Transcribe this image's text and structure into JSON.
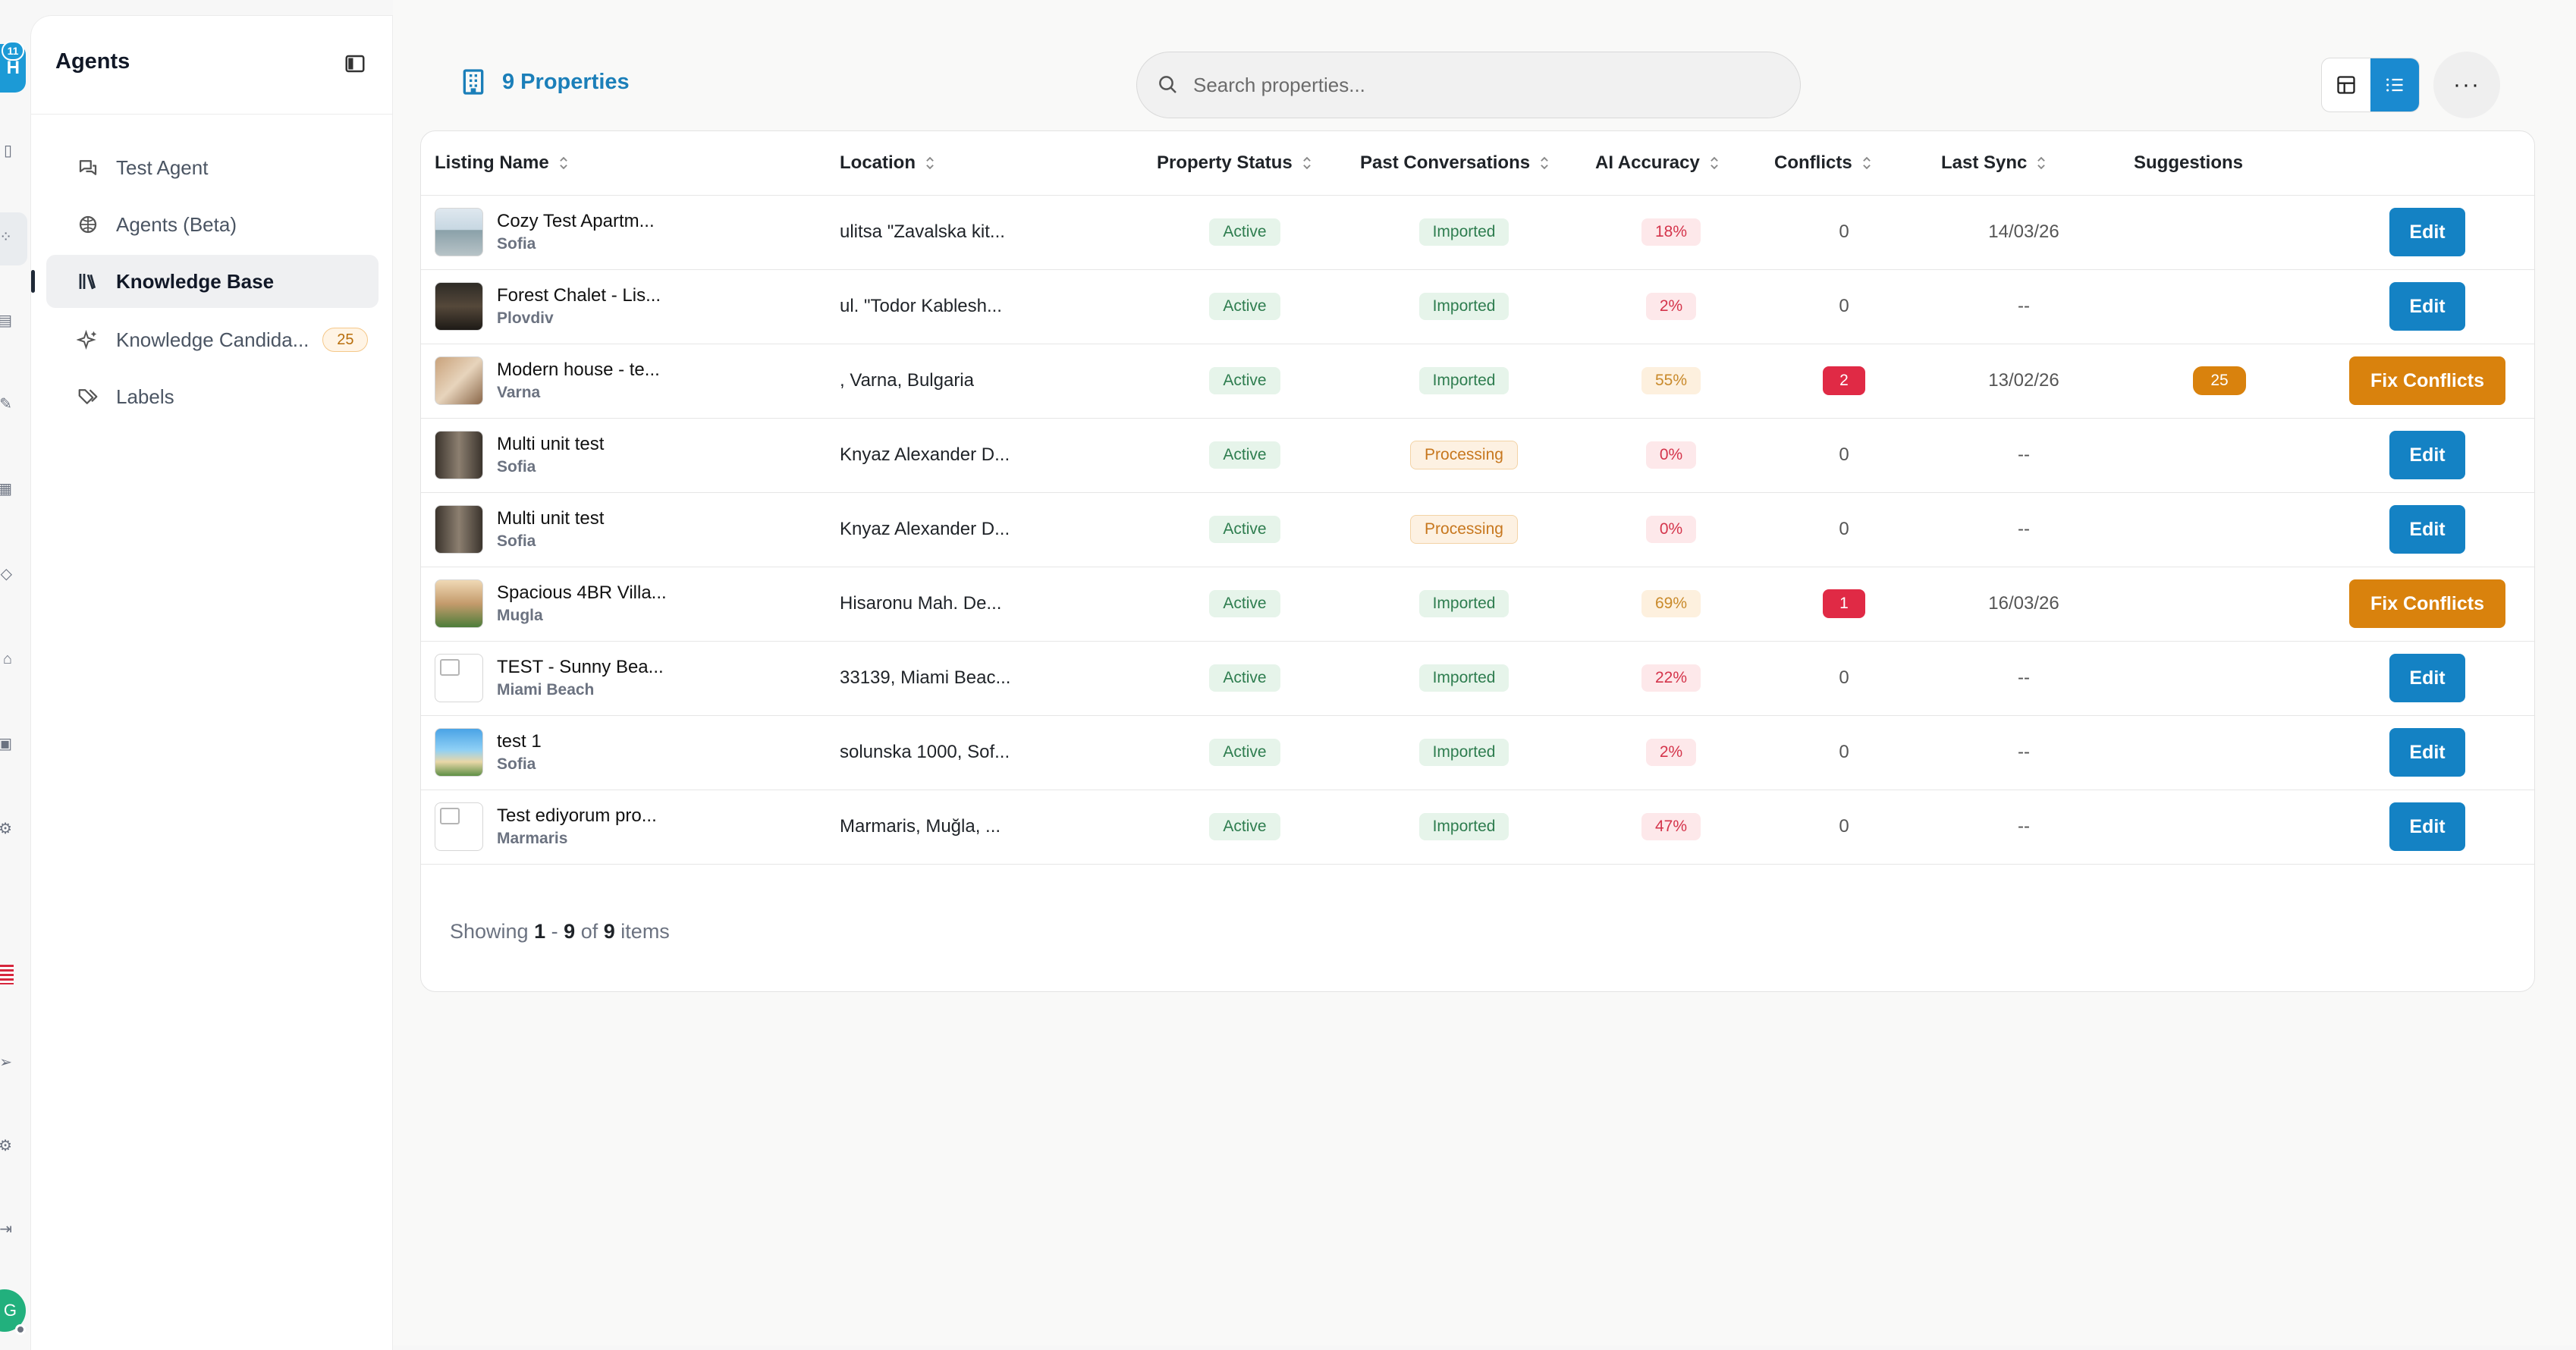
{
  "rail": {
    "logo_letter": "H",
    "notif_count": "11",
    "avatar_letter": "G"
  },
  "sidebar": {
    "title": "Agents",
    "items": [
      {
        "label": "Test Agent",
        "icon": "chat-icon"
      },
      {
        "label": "Agents (Beta)",
        "icon": "brain-icon"
      },
      {
        "label": "Knowledge Base",
        "icon": "library-icon",
        "active": true
      },
      {
        "label": "Knowledge Candida...",
        "icon": "sparkles-icon",
        "badge": "25"
      },
      {
        "label": "Labels",
        "icon": "tags-icon"
      }
    ]
  },
  "header": {
    "properties_label": "9 Properties",
    "search_placeholder": "Search properties...",
    "more_label": "···"
  },
  "table": {
    "columns": [
      "Listing Name",
      "Location",
      "Property Status",
      "Past Conversations",
      "AI Accuracy",
      "Conflicts",
      "Last Sync",
      "Suggestions"
    ],
    "rows": [
      {
        "name": "Cozy Test Apartm...",
        "city": "Sofia",
        "location": "ulitsa \"Zavalska kit...",
        "status": "Active",
        "conv": "Imported",
        "accuracy": "18%",
        "conflicts": "0",
        "sync": "14/03/26",
        "suggestions": "",
        "action": "Edit"
      },
      {
        "name": "Forest Chalet - Lis...",
        "city": "Plovdiv",
        "location": "ul. \"Todor Kablesh...",
        "status": "Active",
        "conv": "Imported",
        "accuracy": "2%",
        "conflicts": "0",
        "sync": "--",
        "suggestions": "",
        "action": "Edit"
      },
      {
        "name": "Modern house - te...",
        "city": "Varna",
        "location": ", Varna, Bulgaria",
        "status": "Active",
        "conv": "Imported",
        "accuracy": "55%",
        "conflicts": "2",
        "sync": "13/02/26",
        "suggestions": "25",
        "action": "Fix Conflicts"
      },
      {
        "name": "Multi unit test",
        "city": "Sofia",
        "location": "Knyaz Alexander D...",
        "status": "Active",
        "conv": "Processing",
        "accuracy": "0%",
        "conflicts": "0",
        "sync": "--",
        "suggestions": "",
        "action": "Edit"
      },
      {
        "name": "Multi unit test",
        "city": "Sofia",
        "location": "Knyaz Alexander D...",
        "status": "Active",
        "conv": "Processing",
        "accuracy": "0%",
        "conflicts": "0",
        "sync": "--",
        "suggestions": "",
        "action": "Edit"
      },
      {
        "name": "Spacious 4BR Villa...",
        "city": "Mugla",
        "location": "Hisaronu Mah. De...",
        "status": "Active",
        "conv": "Imported",
        "accuracy": "69%",
        "conflicts": "1",
        "sync": "16/03/26",
        "suggestions": "",
        "action": "Fix Conflicts"
      },
      {
        "name": "TEST - Sunny Bea...",
        "city": "Miami Beach",
        "location": "33139, Miami Beac...",
        "status": "Active",
        "conv": "Imported",
        "accuracy": "22%",
        "conflicts": "0",
        "sync": "--",
        "suggestions": "",
        "action": "Edit"
      },
      {
        "name": "test 1",
        "city": "Sofia",
        "location": "solunska 1000, Sof...",
        "status": "Active",
        "conv": "Imported",
        "accuracy": "2%",
        "conflicts": "0",
        "sync": "--",
        "suggestions": "",
        "action": "Edit"
      },
      {
        "name": "Test ediyorum pro...",
        "city": "Marmaris",
        "location": "Marmaris, Muğla, ...",
        "status": "Active",
        "conv": "Imported",
        "accuracy": "47%",
        "conflicts": "0",
        "sync": "--",
        "suggestions": "",
        "action": "Edit"
      }
    ]
  },
  "footer": {
    "showing": "Showing",
    "from": "1",
    "dash": "-",
    "to": "9",
    "of": "of",
    "total": "9",
    "items": "items"
  },
  "colors": {
    "accent": "#1482c4",
    "warning": "#d9820d",
    "danger": "#e02a45"
  }
}
